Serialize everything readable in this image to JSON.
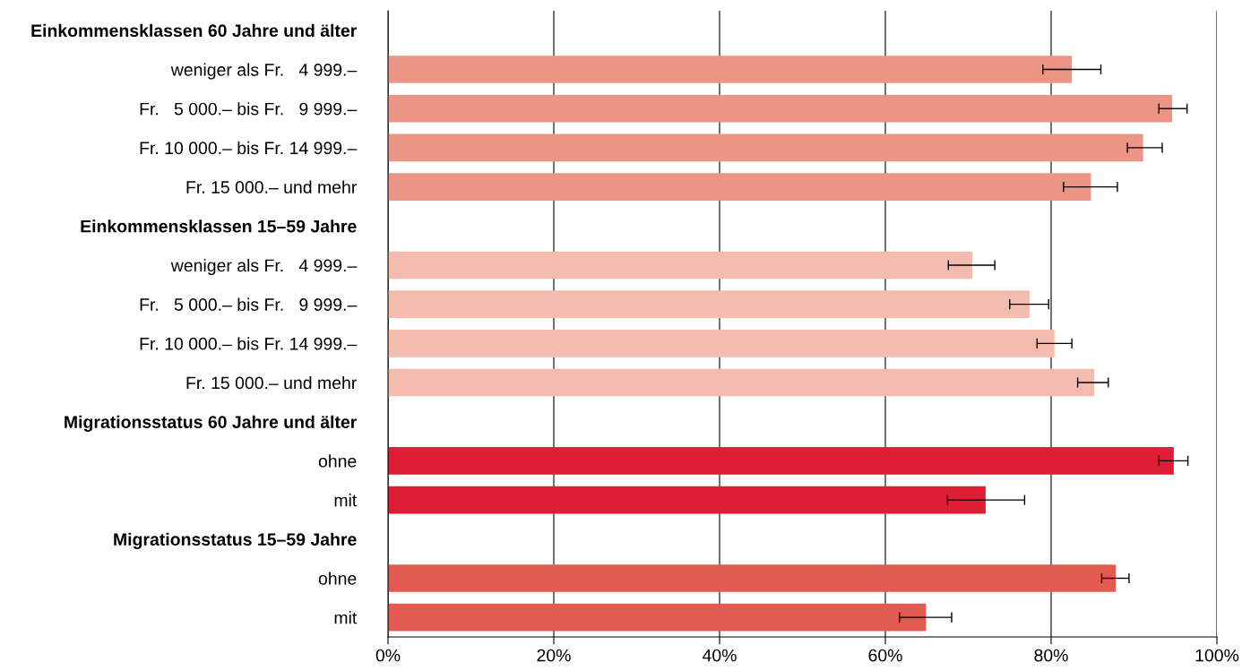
{
  "chart_data": {
    "type": "bar",
    "orientation": "horizontal",
    "categories": [
      "Einkommensklassen 60 Jahre und älter",
      "weniger als Fr.   4 999.–",
      "Fr.   5 000.– bis Fr.   9 999.–",
      "Fr. 10 000.– bis Fr. 14 999.–",
      "Fr. 15 000.– und mehr",
      "Einkommensklassen 15–59 Jahre",
      "weniger als Fr.   4 999.–",
      "Fr.   5 000.– bis Fr.   9 999.–",
      "Fr. 10 000.– bis Fr. 14 999.–",
      "Fr. 15 000.– und mehr",
      "Migrationsstatus 60 Jahre und älter",
      "ohne",
      "mit",
      "Migrationsstatus 15–59 Jahre",
      "ohne",
      "mit"
    ],
    "values": [
      null,
      82.5,
      94.6,
      91.1,
      84.8,
      null,
      70.5,
      77.4,
      80.4,
      85.2,
      null,
      94.8,
      72.1,
      null,
      87.8,
      64.9
    ],
    "errors": [
      null,
      [
        79.0,
        86.0
      ],
      [
        93.0,
        96.4
      ],
      [
        89.2,
        93.4
      ],
      [
        81.5,
        88.0
      ],
      null,
      [
        67.6,
        73.2
      ],
      [
        75.0,
        79.7
      ],
      [
        78.3,
        82.5
      ],
      [
        83.2,
        86.9
      ],
      null,
      [
        93.0,
        96.5
      ],
      [
        67.5,
        76.8
      ],
      null,
      [
        86.1,
        89.4
      ],
      [
        61.7,
        68.0
      ]
    ],
    "colors": [
      null,
      "#ec9585",
      "#ec9585",
      "#ec9585",
      "#ec9585",
      null,
      "#f3bcaf",
      "#f3bcaf",
      "#f3bcaf",
      "#f3bcaf",
      null,
      "#df1e36",
      "#df1e36",
      null,
      "#e35a50",
      "#e35a50"
    ],
    "xlim": [
      0,
      100
    ],
    "xticks": [
      {
        "value": 0,
        "label": "0%"
      },
      {
        "value": 20,
        "label": "20%"
      },
      {
        "value": 40,
        "label": "40%"
      },
      {
        "value": 60,
        "label": "60%"
      },
      {
        "value": 80,
        "label": "80%"
      },
      {
        "value": 100,
        "label": "100%"
      }
    ],
    "grid": "x"
  }
}
